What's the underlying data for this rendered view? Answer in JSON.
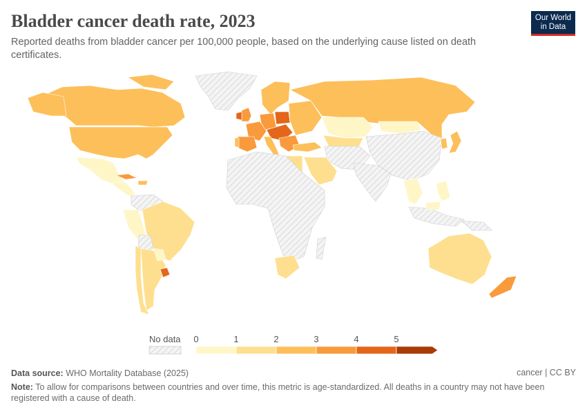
{
  "header": {
    "title": "Bladder cancer death rate, 2023",
    "subtitle": "Reported deaths from bladder cancer per 100,000 people, based on the underlying cause listed on death certificates."
  },
  "logo": {
    "line1": "Our World",
    "line2": "in Data",
    "bg_color": "#0b2a4e",
    "accent_color": "#d42b21"
  },
  "map": {
    "type": "choropleth",
    "colors": {
      "no_data": "#f2f2f2",
      "bin_0_1": "#fef6c7",
      "bin_1_2": "#fddf8f",
      "bin_2_3": "#fdbf5a",
      "bin_3_4": "#f99a3c",
      "bin_4_5": "#e3661b",
      "bin_5_plus": "#a93b06"
    }
  },
  "legend": {
    "no_data_label": "No data",
    "tick_labels": [
      "0",
      "1",
      "2",
      "3",
      "4",
      "5"
    ],
    "bin_colors": [
      "#fef6c7",
      "#fddf8f",
      "#fdbf5a",
      "#f99a3c",
      "#e3661b",
      "#a93b06"
    ]
  },
  "footer": {
    "source_label": "Data source:",
    "source_text": "WHO Mortality Database (2025)",
    "license": "cancer | CC BY",
    "note_label": "Note:",
    "note_text": "To allow for comparisons between countries and over time, this metric is age-standardized. All deaths in a country may not have been registered with a cause of death."
  }
}
